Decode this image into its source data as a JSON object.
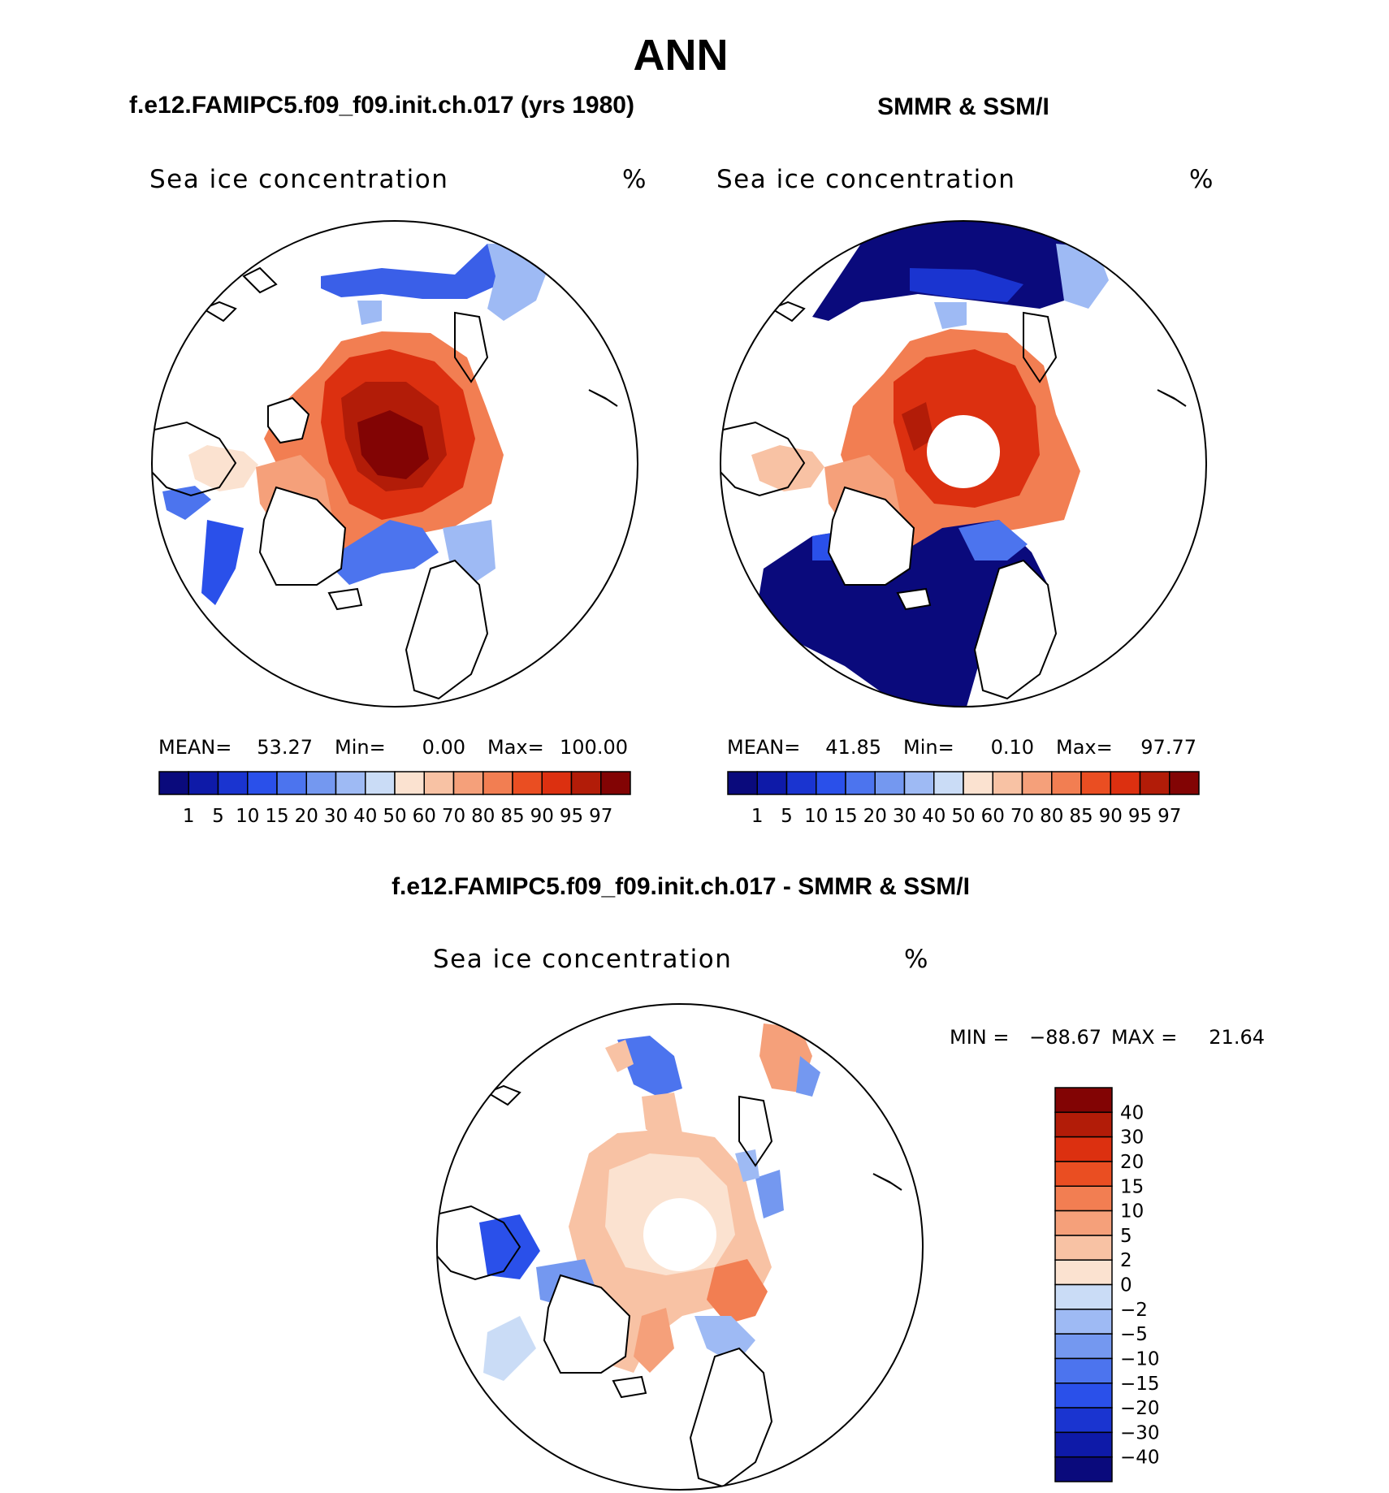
{
  "figure": {
    "main_title": "ANN",
    "left_title": "f.e12.FAMIPC5.f09_f09.init.ch.017 (yrs 1980)",
    "right_title": "SMMR & SSM/I",
    "diff_title": "f.e12.FAMIPC5.f09_f09.init.ch.017 - SMMR & SSM/I"
  },
  "panels": [
    {
      "field_label": "Sea ice concentration",
      "units": "%",
      "stats": {
        "mean_label": "MEAN=",
        "mean": "53.27",
        "min_label": "Min=",
        "min": "0.00",
        "max_label": "Max=",
        "max": "100.00"
      }
    },
    {
      "field_label": "Sea ice concentration",
      "units": "%",
      "stats": {
        "mean_label": "MEAN=",
        "mean": "41.85",
        "min_label": "Min=",
        "min": "0.10",
        "max_label": "Max=",
        "max": "97.77"
      }
    },
    {
      "field_label": "Sea ice concentration",
      "units": "%",
      "stats": {
        "min_label": "MIN =",
        "min": "−88.67",
        "max_label": "MAX =",
        "max": "21.64"
      }
    }
  ],
  "chart_data": [
    {
      "type": "heatmap",
      "title": "f.e12.FAMIPC5.f09_f09.init.ch.017 (yrs 1980)",
      "projection": "north-polar-stereographic",
      "colorbar": {
        "orientation": "horizontal",
        "levels": [
          "1",
          "5",
          "10",
          "15",
          "20",
          "30",
          "40",
          "50",
          "60",
          "70",
          "80",
          "85",
          "90",
          "95",
          "97"
        ],
        "colors": [
          "#0a0a7c",
          "#0e1aa8",
          "#1a34d0",
          "#2a50ea",
          "#4c74ee",
          "#7498f0",
          "#9ebaf4",
          "#cadcf6",
          "#fbe2d0",
          "#f8c2a4",
          "#f5a07a",
          "#f27e52",
          "#ea4e22",
          "#dc3010",
          "#b21c08",
          "#820404"
        ]
      }
    },
    {
      "type": "heatmap",
      "title": "SMMR & SSM/I",
      "projection": "north-polar-stereographic",
      "colorbar": {
        "orientation": "horizontal",
        "levels": [
          "1",
          "5",
          "10",
          "15",
          "20",
          "30",
          "40",
          "50",
          "60",
          "70",
          "80",
          "85",
          "90",
          "95",
          "97"
        ],
        "colors": [
          "#0a0a7c",
          "#0e1aa8",
          "#1a34d0",
          "#2a50ea",
          "#4c74ee",
          "#7498f0",
          "#9ebaf4",
          "#cadcf6",
          "#fbe2d0",
          "#f8c2a4",
          "#f5a07a",
          "#f27e52",
          "#ea4e22",
          "#dc3010",
          "#b21c08",
          "#820404"
        ]
      }
    },
    {
      "type": "heatmap",
      "title": "f.e12.FAMIPC5.f09_f09.init.ch.017 - SMMR & SSM/I",
      "projection": "north-polar-stereographic",
      "colorbar": {
        "orientation": "vertical",
        "levels": [
          "40",
          "30",
          "20",
          "15",
          "10",
          "5",
          "2",
          "0",
          "−2",
          "−5",
          "−10",
          "−15",
          "−20",
          "−30",
          "−40"
        ],
        "colors": [
          "#820404",
          "#b21c08",
          "#dc3010",
          "#ea4e22",
          "#f27e52",
          "#f5a07a",
          "#f8c2a4",
          "#fbe2d0",
          "#cadcf6",
          "#9ebaf4",
          "#7498f0",
          "#4c74ee",
          "#2a50ea",
          "#1a34d0",
          "#0e1aa8",
          "#0a0a7c"
        ]
      }
    }
  ]
}
